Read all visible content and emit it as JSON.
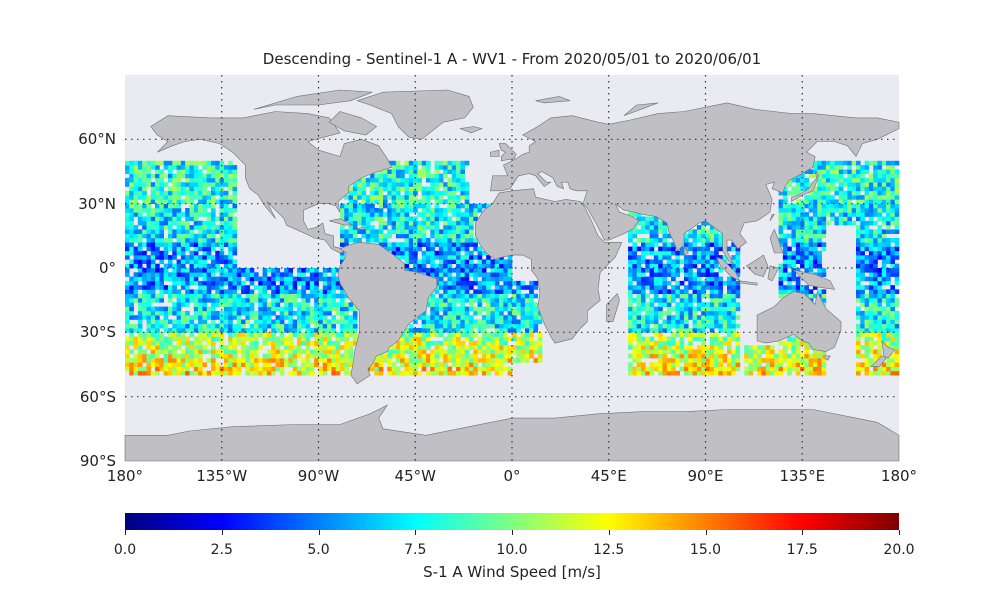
{
  "title": "Descending - Sentinel-1 A - WV1 - From 2020/05/01 to 2020/06/01",
  "map": {
    "projection": "equirectangular",
    "lon_range": [
      -180,
      180
    ],
    "lat_range": [
      -90,
      90
    ],
    "ocean_color": "#eaeaf2",
    "land_color": "#bfbfc4",
    "grid": "dotted",
    "data_lat_range": [
      -50,
      50
    ]
  },
  "lat_ticks": [
    {
      "value": 60,
      "label": "60°N"
    },
    {
      "value": 30,
      "label": "30°N"
    },
    {
      "value": 0,
      "label": "0°"
    },
    {
      "value": -30,
      "label": "30°S"
    },
    {
      "value": -60,
      "label": "60°S"
    },
    {
      "value": -90,
      "label": "90°S"
    }
  ],
  "lon_ticks": [
    {
      "value": -180,
      "label": "180°"
    },
    {
      "value": -135,
      "label": "135°W"
    },
    {
      "value": -90,
      "label": "90°W"
    },
    {
      "value": -45,
      "label": "45°W"
    },
    {
      "value": 0,
      "label": "0°"
    },
    {
      "value": 45,
      "label": "45°E"
    },
    {
      "value": 90,
      "label": "90°E"
    },
    {
      "value": 135,
      "label": "135°E"
    },
    {
      "value": 180,
      "label": "180°"
    }
  ],
  "colorbar": {
    "colormap": "jet",
    "min": 0,
    "max": 20,
    "ticks": [
      "0.0",
      "2.5",
      "5.0",
      "7.5",
      "10.0",
      "12.5",
      "15.0",
      "17.5",
      "20.0"
    ],
    "label": "S-1 A Wind Speed [m/s]"
  }
}
